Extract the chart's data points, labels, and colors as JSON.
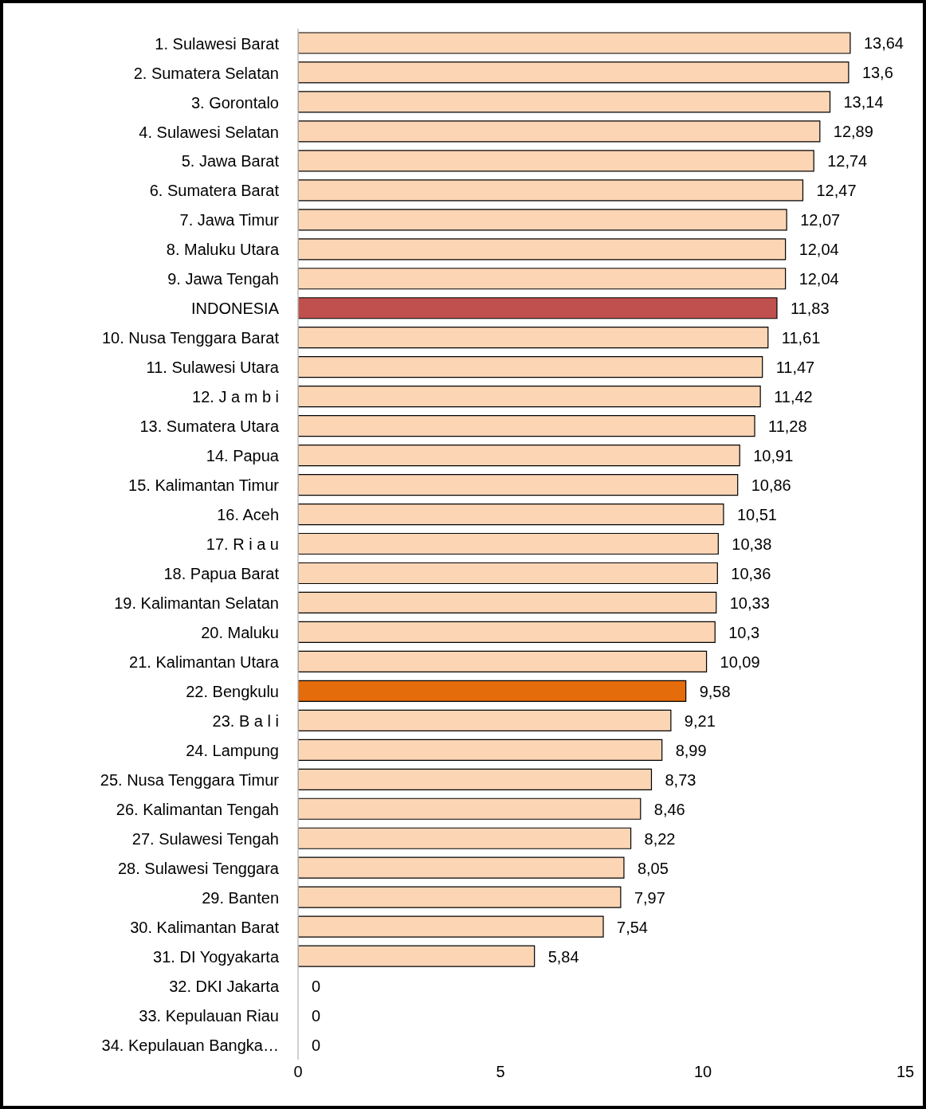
{
  "chart_data": {
    "type": "bar",
    "orientation": "horizontal",
    "categories": [
      "1. Sulawesi Barat",
      "2. Sumatera Selatan",
      "3. Gorontalo",
      "4. Sulawesi Selatan",
      "5. Jawa Barat",
      "6. Sumatera Barat",
      "7. Jawa Timur",
      "8. Maluku Utara",
      "9. Jawa Tengah",
      "INDONESIA",
      "10. Nusa Tenggara Barat",
      "11. Sulawesi Utara",
      "12. J a m b i",
      "13. Sumatera Utara",
      "14. Papua",
      "15. Kalimantan Timur",
      "16. Aceh",
      "17. R i a u",
      "18. Papua Barat",
      "19. Kalimantan Selatan",
      "20. Maluku",
      "21. Kalimantan Utara",
      "22. Bengkulu",
      "23. B a l i",
      "24. Lampung",
      "25. Nusa Tenggara Timur",
      "26. Kalimantan Tengah",
      "27. Sulawesi Tengah",
      "28. Sulawesi Tenggara",
      "29. Banten",
      "30. Kalimantan  Barat",
      "31. DI Yogyakarta",
      "32. DKI Jakarta",
      "33. Kepulauan Riau",
      "34. Kepulauan Bangka…"
    ],
    "values": [
      13.64,
      13.6,
      13.14,
      12.89,
      12.74,
      12.47,
      12.07,
      12.04,
      12.04,
      11.83,
      11.61,
      11.47,
      11.42,
      11.28,
      10.91,
      10.86,
      10.51,
      10.38,
      10.36,
      10.33,
      10.3,
      10.09,
      9.58,
      9.21,
      8.99,
      8.73,
      8.46,
      8.22,
      8.05,
      7.97,
      7.54,
      5.84,
      0,
      0,
      0
    ],
    "value_labels": [
      "13,64",
      "13,6",
      "13,14",
      "12,89",
      "12,74",
      "12,47",
      "12,07",
      "12,04",
      "12,04",
      "11,83",
      "11,61",
      "11,47",
      "11,42",
      "11,28",
      "10,91",
      "10,86",
      "10,51",
      "10,38",
      "10,36",
      "10,33",
      "10,3",
      "10,09",
      "9,58",
      "9,21",
      "8,99",
      "8,73",
      "8,46",
      "8,22",
      "8,05",
      "7,97",
      "7,54",
      "5,84",
      "0",
      "0",
      "0"
    ],
    "colors": [
      "#fcd5b5",
      "#fcd5b5",
      "#fcd5b5",
      "#fcd5b5",
      "#fcd5b5",
      "#fcd5b5",
      "#fcd5b5",
      "#fcd5b5",
      "#fcd5b5",
      "#c0504d",
      "#fcd5b5",
      "#fcd5b5",
      "#fcd5b5",
      "#fcd5b5",
      "#fcd5b5",
      "#fcd5b5",
      "#fcd5b5",
      "#fcd5b5",
      "#fcd5b5",
      "#fcd5b5",
      "#fcd5b5",
      "#fcd5b5",
      "#e46c0a",
      "#fcd5b5",
      "#fcd5b5",
      "#fcd5b5",
      "#fcd5b5",
      "#fcd5b5",
      "#fcd5b5",
      "#fcd5b5",
      "#fcd5b5",
      "#fcd5b5",
      "#fcd5b5",
      "#fcd5b5",
      "#fcd5b5"
    ],
    "xlim": [
      0,
      15
    ],
    "xticks": [
      0,
      5,
      10,
      15
    ],
    "grid": false,
    "legend": false
  }
}
